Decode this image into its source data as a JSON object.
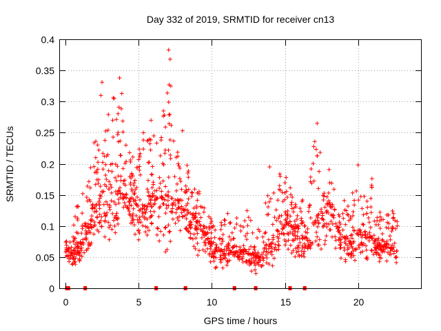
{
  "chart_data": {
    "type": "scatter",
    "title": "Day 332 of 2019, SRMTID for receiver cn13",
    "xlabel": "GPS time / hours",
    "ylabel": "SRMTID / TECUs",
    "xlim": [
      0,
      24.3
    ],
    "ylim": [
      0,
      0.4
    ],
    "x_ticks": [
      0,
      5,
      10,
      15,
      20
    ],
    "x_tick_labels": [
      "0",
      "5",
      "10",
      "15",
      "20"
    ],
    "y_ticks": [
      0,
      0.05,
      0.1,
      0.15,
      0.2,
      0.25,
      0.3,
      0.35,
      0.4
    ],
    "y_tick_labels": [
      "0",
      "0.05",
      "0.1",
      "0.15",
      "0.2",
      "0.25",
      "0.3",
      "0.35",
      "0.4"
    ],
    "grid": true,
    "marker": "plus",
    "color": "#ff0000",
    "baseline_marks_x": [
      0.1,
      0.2,
      1.35,
      6.2,
      8.2,
      11.55,
      13.0,
      15.35,
      16.35
    ],
    "envelope": {
      "description": "approximate spread of SRMTID samples per half hour (min, median, max) read from the plot",
      "x": [
        0.0,
        0.5,
        1.0,
        1.5,
        2.0,
        2.5,
        3.0,
        3.5,
        4.0,
        4.5,
        5.0,
        5.5,
        6.0,
        6.5,
        7.0,
        7.5,
        8.0,
        8.5,
        9.0,
        9.5,
        10.0,
        10.5,
        11.0,
        11.5,
        12.0,
        12.5,
        13.0,
        13.5,
        14.0,
        14.5,
        15.0,
        15.5,
        16.0,
        16.5,
        17.0,
        17.5,
        18.0,
        18.5,
        19.0,
        19.5,
        20.0,
        20.5,
        21.0,
        21.5,
        22.0,
        22.5,
        22.7
      ],
      "min": [
        0.04,
        0.03,
        0.03,
        0.05,
        0.07,
        0.08,
        0.05,
        0.08,
        0.09,
        0.08,
        0.07,
        0.08,
        0.08,
        0.06,
        0.05,
        0.07,
        0.07,
        0.06,
        0.05,
        0.04,
        0.03,
        0.03,
        0.03,
        0.04,
        0.03,
        0.03,
        0.02,
        0.02,
        0.03,
        0.04,
        0.05,
        0.05,
        0.04,
        0.04,
        0.05,
        0.05,
        0.06,
        0.05,
        0.04,
        0.04,
        0.04,
        0.04,
        0.04,
        0.04,
        0.04,
        0.04,
        0.04
      ],
      "median": [
        0.06,
        0.06,
        0.07,
        0.09,
        0.13,
        0.15,
        0.16,
        0.15,
        0.17,
        0.14,
        0.13,
        0.13,
        0.15,
        0.14,
        0.15,
        0.14,
        0.13,
        0.12,
        0.11,
        0.09,
        0.07,
        0.06,
        0.06,
        0.07,
        0.06,
        0.06,
        0.05,
        0.05,
        0.07,
        0.09,
        0.11,
        0.1,
        0.09,
        0.08,
        0.11,
        0.12,
        0.14,
        0.1,
        0.08,
        0.08,
        0.09,
        0.09,
        0.08,
        0.07,
        0.07,
        0.06,
        0.06
      ],
      "max": [
        0.09,
        0.11,
        0.15,
        0.17,
        0.25,
        0.33,
        0.29,
        0.34,
        0.26,
        0.21,
        0.23,
        0.27,
        0.25,
        0.23,
        0.38,
        0.25,
        0.21,
        0.19,
        0.17,
        0.13,
        0.11,
        0.1,
        0.13,
        0.14,
        0.11,
        0.13,
        0.09,
        0.11,
        0.19,
        0.18,
        0.2,
        0.15,
        0.13,
        0.16,
        0.26,
        0.23,
        0.21,
        0.14,
        0.15,
        0.16,
        0.19,
        0.15,
        0.17,
        0.13,
        0.12,
        0.13,
        0.12
      ]
    },
    "notable_points": [
      {
        "x": 7.05,
        "y": 0.383
      },
      {
        "x": 7.15,
        "y": 0.368
      },
      {
        "x": 3.7,
        "y": 0.338
      },
      {
        "x": 2.5,
        "y": 0.331
      },
      {
        "x": 7.2,
        "y": 0.325
      },
      {
        "x": 3.85,
        "y": 0.313
      },
      {
        "x": 17.2,
        "y": 0.265
      },
      {
        "x": 5.85,
        "y": 0.27
      },
      {
        "x": 8.0,
        "y": 0.253
      },
      {
        "x": 20.0,
        "y": 0.198
      },
      {
        "x": 13.95,
        "y": 0.195
      },
      {
        "x": 20.95,
        "y": 0.176
      }
    ]
  }
}
